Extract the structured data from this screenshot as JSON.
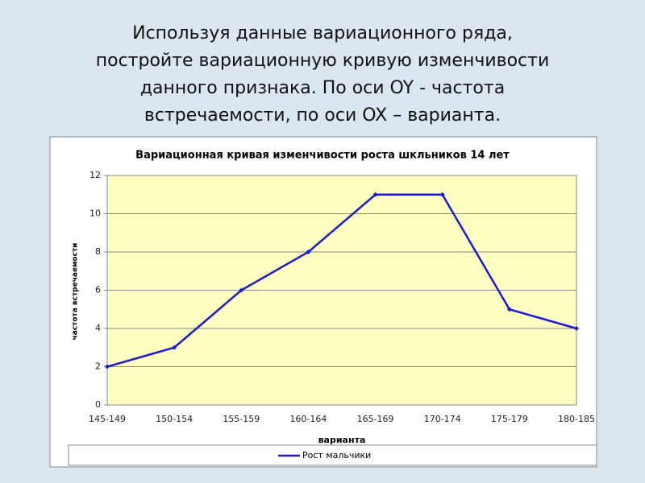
{
  "heading": [
    "Используя данные вариационного ряда,",
    "постройте вариационную кривую изменчивости",
    "данного признака. По оси OY - частота",
    "встречаемости, по оси OX – варианта."
  ],
  "chart_data": {
    "type": "line",
    "title": "Вариационная кривая изменчивости роста шкльников 14 лет",
    "x_label": "варианта",
    "y_label": "частота встречаемости",
    "categories": [
      "145-149",
      "150-154",
      "155-159",
      "160-164",
      "165-169",
      "170-174",
      "175-179",
      "180-185"
    ],
    "series": [
      {
        "name": "Рост мальчики",
        "color": "#1a1adc",
        "values": [
          2,
          3,
          6,
          8,
          11,
          11,
          5,
          4
        ]
      }
    ],
    "ylim": [
      0,
      12
    ],
    "yticks": [
      0,
      2,
      4,
      6,
      8,
      10,
      12
    ],
    "grid": true,
    "legend": "bottom"
  }
}
